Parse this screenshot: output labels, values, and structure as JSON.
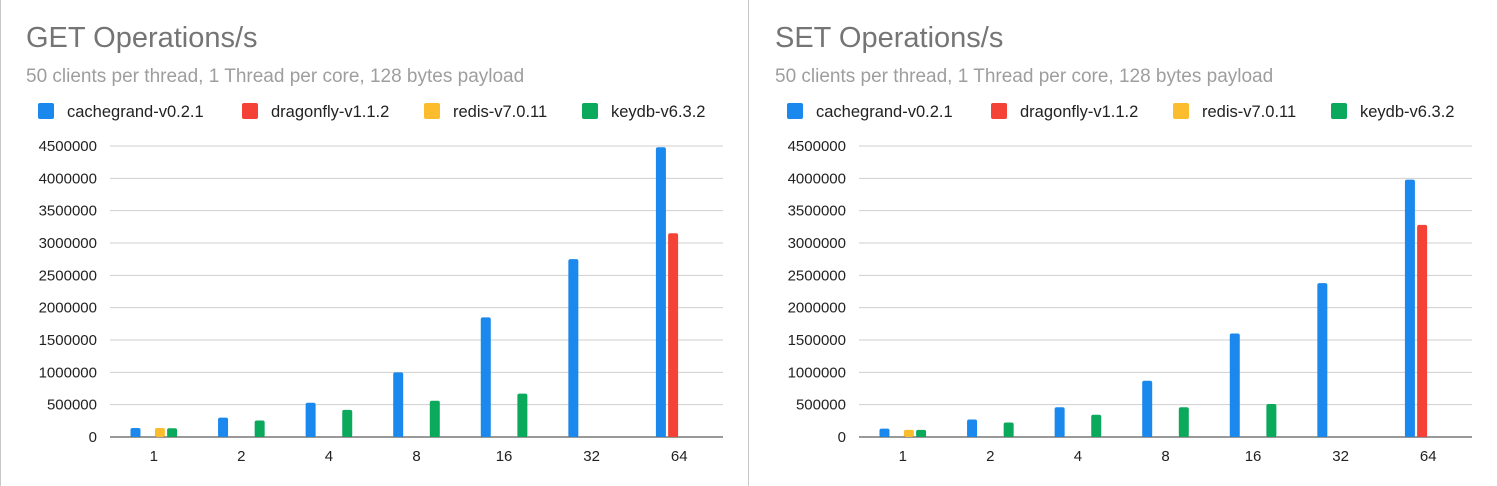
{
  "chart_data": [
    {
      "type": "bar",
      "title": "GET Operations/s",
      "subtitle": "50 clients per thread, 1 Thread per core, 128 bytes payload",
      "categories": [
        "1",
        "2",
        "4",
        "8",
        "16",
        "32",
        "64"
      ],
      "ylim": [
        0,
        4500000
      ],
      "yticks": [
        "0",
        "500000",
        "1000000",
        "1500000",
        "2000000",
        "2500000",
        "3000000",
        "3500000",
        "4000000",
        "4500000"
      ],
      "grid": true,
      "legend_position": "top",
      "series": [
        {
          "name": "cachegrand-v0.2.1",
          "color": "#1a88ec",
          "values": [
            140000,
            300000,
            530000,
            1000000,
            1850000,
            2750000,
            4480000
          ]
        },
        {
          "name": "dragonfly-v1.1.2",
          "color": "#f44336",
          "values": [
            null,
            null,
            null,
            null,
            null,
            null,
            3150000
          ]
        },
        {
          "name": "redis-v7.0.11",
          "color": "#fbbd2d",
          "values": [
            140000,
            null,
            null,
            null,
            null,
            null,
            null
          ]
        },
        {
          "name": "keydb-v6.3.2",
          "color": "#0ba95b",
          "values": [
            135000,
            255000,
            420000,
            560000,
            670000,
            null,
            null
          ]
        }
      ]
    },
    {
      "type": "bar",
      "title": "SET Operations/s",
      "subtitle": "50 clients per thread, 1 Thread per core, 128 bytes payload",
      "categories": [
        "1",
        "2",
        "4",
        "8",
        "16",
        "32",
        "64"
      ],
      "ylim": [
        0,
        4500000
      ],
      "yticks": [
        "0",
        "500000",
        "1000000",
        "1500000",
        "2000000",
        "2500000",
        "3000000",
        "3500000",
        "4000000",
        "4500000"
      ],
      "grid": true,
      "legend_position": "top",
      "series": [
        {
          "name": "cachegrand-v0.2.1",
          "color": "#1a88ec",
          "values": [
            130000,
            270000,
            460000,
            870000,
            1600000,
            2380000,
            3980000
          ]
        },
        {
          "name": "dragonfly-v1.1.2",
          "color": "#f44336",
          "values": [
            null,
            null,
            null,
            null,
            null,
            null,
            3280000
          ]
        },
        {
          "name": "redis-v7.0.11",
          "color": "#fbbd2d",
          "values": [
            110000,
            null,
            null,
            null,
            null,
            null,
            null
          ]
        },
        {
          "name": "keydb-v6.3.2",
          "color": "#0ba95b",
          "values": [
            110000,
            225000,
            345000,
            460000,
            510000,
            null,
            null
          ]
        }
      ]
    }
  ]
}
